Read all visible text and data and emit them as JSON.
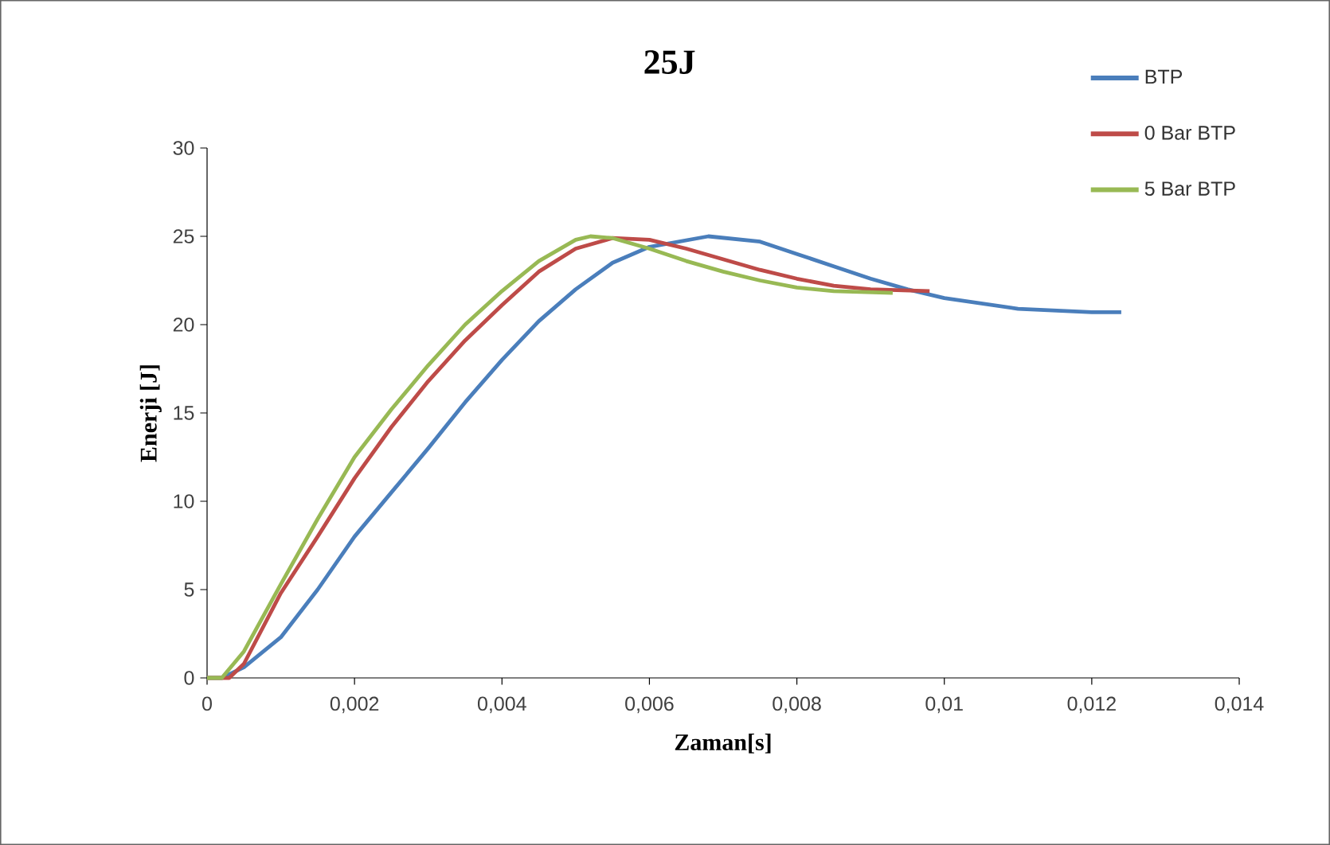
{
  "chart_data": {
    "type": "line",
    "title": "25J",
    "xlabel": "Zaman[s]",
    "ylabel": "Enerji [J]",
    "xlim": [
      0,
      0.014
    ],
    "ylim": [
      0,
      30
    ],
    "xticks": [
      {
        "value": 0,
        "label": "0"
      },
      {
        "value": 0.002,
        "label": "0,002"
      },
      {
        "value": 0.004,
        "label": "0,004"
      },
      {
        "value": 0.006,
        "label": "0,006"
      },
      {
        "value": 0.008,
        "label": "0,008"
      },
      {
        "value": 0.01,
        "label": "0,01"
      },
      {
        "value": 0.012,
        "label": "0,012"
      },
      {
        "value": 0.014,
        "label": "0,014"
      }
    ],
    "yticks": [
      0,
      5,
      10,
      15,
      20,
      25,
      30
    ],
    "grid": false,
    "legend": "top right",
    "marker": "none",
    "line_style": "solid",
    "series": [
      {
        "name": "BTP",
        "color": "#4a7ebb",
        "x": [
          0,
          0.0002,
          0.0005,
          0.001,
          0.0015,
          0.002,
          0.0025,
          0.003,
          0.0035,
          0.004,
          0.0045,
          0.005,
          0.0055,
          0.006,
          0.0068,
          0.0075,
          0.008,
          0.0085,
          0.009,
          0.0095,
          0.01,
          0.011,
          0.012,
          0.0124
        ],
        "values": [
          0,
          0,
          0.6,
          2.3,
          5.0,
          8.0,
          10.5,
          13.0,
          15.6,
          18.0,
          20.2,
          22.0,
          23.5,
          24.4,
          25.0,
          24.7,
          24.0,
          23.3,
          22.6,
          22.0,
          21.5,
          20.9,
          20.7,
          20.7
        ]
      },
      {
        "name": "0 Bar BTP",
        "color": "#be4b48",
        "x": [
          0,
          0.0003,
          0.0005,
          0.001,
          0.0015,
          0.002,
          0.0025,
          0.003,
          0.0035,
          0.004,
          0.0045,
          0.005,
          0.0055,
          0.006,
          0.0065,
          0.007,
          0.0075,
          0.008,
          0.0085,
          0.009,
          0.0098
        ],
        "values": [
          0,
          0,
          0.8,
          4.8,
          8.0,
          11.3,
          14.2,
          16.8,
          19.1,
          21.1,
          23.0,
          24.3,
          24.9,
          24.8,
          24.3,
          23.7,
          23.1,
          22.6,
          22.2,
          22.0,
          21.9
        ]
      },
      {
        "name": "5 Bar BTP",
        "color": "#98b954",
        "x": [
          0,
          0.0002,
          0.0005,
          0.001,
          0.0015,
          0.002,
          0.0025,
          0.003,
          0.0035,
          0.004,
          0.0045,
          0.005,
          0.0052,
          0.0055,
          0.006,
          0.0065,
          0.007,
          0.0075,
          0.008,
          0.0085,
          0.0093
        ],
        "values": [
          0,
          0,
          1.5,
          5.3,
          9.0,
          12.5,
          15.2,
          17.7,
          20.0,
          21.9,
          23.6,
          24.8,
          25.0,
          24.9,
          24.3,
          23.6,
          23.0,
          22.5,
          22.1,
          21.9,
          21.8
        ]
      }
    ]
  }
}
